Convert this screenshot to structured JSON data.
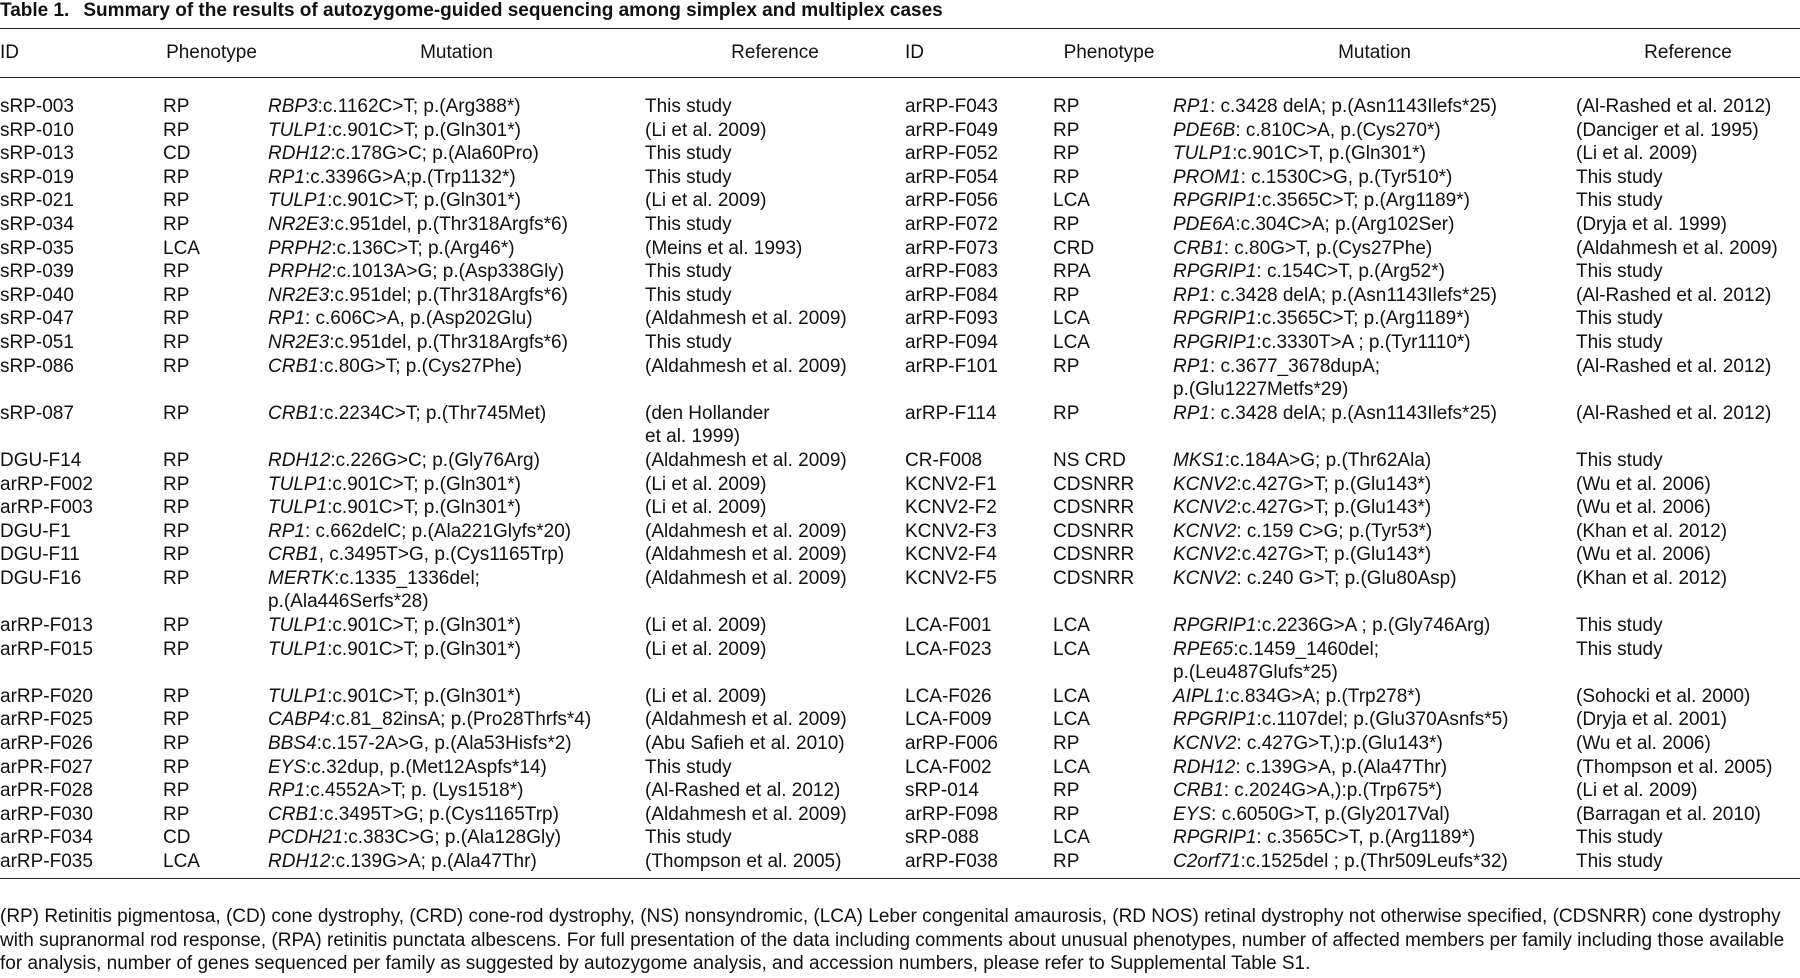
{
  "title": {
    "label": "Table 1.",
    "text": "Summary of the results of autozygome-guided sequencing among simplex and multiplex cases"
  },
  "table": {
    "headers": [
      "ID",
      "Phenotype",
      "Mutation",
      "Reference",
      "ID",
      "Phenotype",
      "Mutation",
      "Reference"
    ],
    "rows": [
      [
        {
          "id": "sRP-003",
          "phenotype": "RP",
          "gene": "RBP3",
          "mutation": ":c.1162C>T; p.(Arg388*)",
          "reference": "This study"
        },
        {
          "id": "arRP-F043",
          "phenotype": "RP",
          "gene": "RP1",
          "mutation": ": c.3428 delA; p.(Asn1143Ilefs*25)",
          "reference": "(Al-Rashed et al. 2012)"
        }
      ],
      [
        {
          "id": "sRP-010",
          "phenotype": "RP",
          "gene": "TULP1",
          "mutation": ":c.901C>T; p.(Gln301*)",
          "reference": "(Li et al. 2009)"
        },
        {
          "id": "arRP-F049",
          "phenotype": "RP",
          "gene": "PDE6B",
          "mutation": ": c.810C>A, p.(Cys270*)",
          "reference": "(Danciger et al. 1995)"
        }
      ],
      [
        {
          "id": "sRP-013",
          "phenotype": "CD",
          "gene": "RDH12",
          "mutation": ":c.178G>C; p.(Ala60Pro)",
          "reference": "This study"
        },
        {
          "id": "arRP-F052",
          "phenotype": "RP",
          "gene": "TULP1",
          "mutation": ":c.901C>T, p.(Gln301*)",
          "reference": "(Li et al. 2009)"
        }
      ],
      [
        {
          "id": "sRP-019",
          "phenotype": "RP",
          "gene": "RP1",
          "mutation": ":c.3396G>A;p.(Trp1132*)",
          "reference": "This study"
        },
        {
          "id": "arRP-F054",
          "phenotype": "RP",
          "gene": "PROM1",
          "mutation": ": c.1530C>G, p.(Tyr510*)",
          "reference": "This study"
        }
      ],
      [
        {
          "id": "sRP-021",
          "phenotype": "RP",
          "gene": "TULP1",
          "mutation": ":c.901C>T; p.(Gln301*)",
          "reference": "(Li et al. 2009)"
        },
        {
          "id": "arRP-F056",
          "phenotype": "LCA",
          "gene": "RPGRIP1",
          "mutation": ":c.3565C>T; p.(Arg1189*)",
          "reference": "This study"
        }
      ],
      [
        {
          "id": "sRP-034",
          "phenotype": "RP",
          "gene": "NR2E3",
          "mutation": ":c.951del, p.(Thr318Argfs*6)",
          "reference": "This study"
        },
        {
          "id": "arRP-F072",
          "phenotype": "RP",
          "gene": "PDE6A",
          "mutation": ":c.304C>A; p.(Arg102Ser)",
          "reference": "(Dryja et al. 1999)"
        }
      ],
      [
        {
          "id": "sRP-035",
          "phenotype": "LCA",
          "gene": "PRPH2",
          "mutation": ":c.136C>T; p.(Arg46*)",
          "reference": "(Meins et al. 1993)"
        },
        {
          "id": "arRP-F073",
          "phenotype": "CRD",
          "gene": "CRB1",
          "mutation": ": c.80G>T, p.(Cys27Phe)",
          "reference": "(Aldahmesh et al. 2009)"
        }
      ],
      [
        {
          "id": "sRP-039",
          "phenotype": "RP",
          "gene": "PRPH2",
          "mutation": ":c.1013A>G; p.(Asp338Gly)",
          "reference": "This study"
        },
        {
          "id": "arRP-F083",
          "phenotype": "RPA",
          "gene": "RPGRIP1",
          "mutation": ": c.154C>T, p.(Arg52*)",
          "reference": "This study"
        }
      ],
      [
        {
          "id": "sRP-040",
          "phenotype": "RP",
          "gene": "NR2E3",
          "mutation": ":c.951del; p.(Thr318Argfs*6)",
          "reference": "This study"
        },
        {
          "id": "arRP-F084",
          "phenotype": "RP",
          "gene": "RP1",
          "mutation": ": c.3428 delA; p.(Asn1143Ilefs*25)",
          "reference": "(Al-Rashed et al. 2012)"
        }
      ],
      [
        {
          "id": "sRP-047",
          "phenotype": "RP",
          "gene": "RP1",
          "mutation": ": c.606C>A, p.(Asp202Glu)",
          "reference": "(Aldahmesh et al. 2009)"
        },
        {
          "id": "arRP-F093",
          "phenotype": "LCA",
          "gene": "RPGRIP1",
          "mutation": ":c.3565C>T; p.(Arg1189*)",
          "reference": "This study"
        }
      ],
      [
        {
          "id": "sRP-051",
          "phenotype": "RP",
          "gene": "NR2E3",
          "mutation": ":c.951del, p.(Thr318Argfs*6)",
          "reference": "This study"
        },
        {
          "id": "arRP-F094",
          "phenotype": "LCA",
          "gene": "RPGRIP1",
          "mutation": ":c.3330T>A ; p.(Tyr1110*)",
          "reference": "This study"
        }
      ],
      [
        {
          "id": "sRP-086",
          "phenotype": "RP",
          "gene": "CRB1",
          "mutation": ":c.80G>T; p.(Cys27Phe)",
          "reference": "(Aldahmesh et al. 2009)"
        },
        {
          "id": "arRP-F101",
          "phenotype": "RP",
          "gene": "RP1",
          "mutation": ": c.3677_3678dupA;\n p.(Glu1227Metfs*29)",
          "reference": "(Al-Rashed et al. 2012)"
        }
      ],
      [
        {
          "id": "sRP-087",
          "phenotype": "RP",
          "gene": "CRB1",
          "mutation": ":c.2234C>T; p.(Thr745Met)",
          "reference": "(den Hollander\n et al. 1999)"
        },
        {
          "id": "arRP-F114",
          "phenotype": "RP",
          "gene": "RP1",
          "mutation": ": c.3428 delA; p.(Asn1143Ilefs*25)",
          "reference": "(Al-Rashed et al. 2012)"
        }
      ],
      [
        {
          "id": "DGU-F14",
          "phenotype": "RP",
          "gene": "RDH12",
          "mutation": ":c.226G>C; p.(Gly76Arg)",
          "reference": "(Aldahmesh et al. 2009)"
        },
        {
          "id": "CR-F008",
          "phenotype": "NS CRD",
          "gene": "MKS1",
          "mutation": ":c.184A>G; p.(Thr62Ala)",
          "reference": "This study"
        }
      ],
      [
        {
          "id": "arRP-F002",
          "phenotype": "RP",
          "gene": "TULP1",
          "mutation": ":c.901C>T; p.(Gln301*)",
          "reference": "(Li et al. 2009)"
        },
        {
          "id": "KCNV2-F1",
          "phenotype": "CDSNRR",
          "gene": "KCNV2",
          "mutation": ":c.427G>T; p.(Glu143*)",
          "reference": "(Wu et al. 2006)"
        }
      ],
      [
        {
          "id": "arRP-F003",
          "phenotype": "RP",
          "gene": "TULP1",
          "mutation": ":c.901C>T; p.(Gln301*)",
          "reference": "(Li et al. 2009)"
        },
        {
          "id": "KCNV2-F2",
          "phenotype": "CDSNRR",
          "gene": "KCNV2",
          "mutation": ":c.427G>T; p.(Glu143*)",
          "reference": "(Wu et al. 2006)"
        }
      ],
      [
        {
          "id": "DGU-F1",
          "phenotype": "RP",
          "gene": "RP1",
          "mutation": ": c.662delC; p.(Ala221Glyfs*20)",
          "reference": "(Aldahmesh et al. 2009)"
        },
        {
          "id": "KCNV2-F3",
          "phenotype": "CDSNRR",
          "gene": "KCNV2",
          "mutation": ": c.159 C>G; p.(Tyr53*)",
          "reference": "(Khan et al. 2012)"
        }
      ],
      [
        {
          "id": "DGU-F11",
          "phenotype": "RP",
          "gene": "CRB1",
          "mutation": ", c.3495T>G, p.(Cys1165Trp)",
          "reference": "(Aldahmesh et al. 2009)"
        },
        {
          "id": "KCNV2-F4",
          "phenotype": "CDSNRR",
          "gene": "KCNV2",
          "mutation": ":c.427G>T; p.(Glu143*)",
          "reference": "(Wu et al. 2006)"
        }
      ],
      [
        {
          "id": "DGU-F16",
          "phenotype": "RP",
          "gene": "MERTK",
          "mutation": ":c.1335_1336del;\n p.(Ala446Serfs*28)",
          "reference": "(Aldahmesh et al. 2009)"
        },
        {
          "id": "KCNV2-F5",
          "phenotype": "CDSNRR",
          "gene": "KCNV2",
          "mutation": ": c.240 G>T; p.(Glu80Asp)",
          "reference": "(Khan et al. 2012)"
        }
      ],
      [
        {
          "id": "arRP-F013",
          "phenotype": "RP",
          "gene": "TULP1",
          "mutation": ":c.901C>T; p.(Gln301*)",
          "reference": "(Li et al. 2009)"
        },
        {
          "id": "LCA-F001",
          "phenotype": "LCA",
          "gene": "RPGRIP1",
          "mutation": ":c.2236G>A ; p.(Gly746Arg)",
          "reference": "This study"
        }
      ],
      [
        {
          "id": "arRP-F015",
          "phenotype": "RP",
          "gene": "TULP1",
          "mutation": ":c.901C>T; p.(Gln301*)",
          "reference": "(Li et al. 2009)"
        },
        {
          "id": "LCA-F023",
          "phenotype": "LCA",
          "gene": "RPE65",
          "mutation": ":c.1459_1460del;\n p.(Leu487Glufs*25)",
          "reference": "This study"
        }
      ],
      [
        {
          "id": "arRP-F020",
          "phenotype": "RP",
          "gene": "TULP1",
          "mutation": ":c.901C>T; p.(Gln301*)",
          "reference": "(Li et al. 2009)"
        },
        {
          "id": "LCA-F026",
          "phenotype": "LCA",
          "gene": "AIPL1",
          "mutation": ":c.834G>A; p.(Trp278*)",
          "reference": "(Sohocki et al. 2000)"
        }
      ],
      [
        {
          "id": "arRP-F025",
          "phenotype": "RP",
          "gene": "CABP4",
          "mutation": ":c.81_82insA; p.(Pro28Thrfs*4)",
          "reference": "(Aldahmesh et al. 2009)"
        },
        {
          "id": "LCA-F009",
          "phenotype": "LCA",
          "gene": "RPGRIP1",
          "mutation": ":c.1107del; p.(Glu370Asnfs*5)",
          "reference": "(Dryja et al. 2001)"
        }
      ],
      [
        {
          "id": "arRP-F026",
          "phenotype": "RP",
          "gene": "BBS4",
          "mutation": ":c.157-2A>G, p.(Ala53Hisfs*2)",
          "reference": "(Abu Safieh et al. 2010)"
        },
        {
          "id": "arRP-F006",
          "phenotype": "RP",
          "gene": "KCNV2",
          "mutation": ": c.427G>T,):p.(Glu143*)",
          "reference": "(Wu et al. 2006)"
        }
      ],
      [
        {
          "id": "arPR-F027",
          "phenotype": "RP",
          "gene": "EYS",
          "mutation": ":c.32dup, p.(Met12Aspfs*14)",
          "reference": "This study"
        },
        {
          "id": "LCA-F002",
          "phenotype": "LCA",
          "gene": "RDH12",
          "mutation": ": c.139G>A, p.(Ala47Thr)",
          "reference": "(Thompson et al. 2005)"
        }
      ],
      [
        {
          "id": "arPR-F028",
          "phenotype": "RP",
          "gene": "RP1",
          "mutation": ":c.4552A>T; p. (Lys1518*)",
          "reference": "(Al-Rashed et al. 2012)"
        },
        {
          "id": "sRP-014",
          "phenotype": "RP",
          "gene": "CRB1",
          "mutation": ": c.2024G>A,):p.(Trp675*)",
          "reference": "(Li et al. 2009)"
        }
      ],
      [
        {
          "id": "arRP-F030",
          "phenotype": "RP",
          "gene": "CRB1",
          "mutation": ":c.3495T>G; p.(Cys1165Trp)",
          "reference": "(Aldahmesh et al. 2009)"
        },
        {
          "id": "arRP-F098",
          "phenotype": "RP",
          "gene": "EYS",
          "mutation": ": c.6050G>T, p.(Gly2017Val)",
          "reference": "(Barragan et al. 2010)"
        }
      ],
      [
        {
          "id": "arRP-F034",
          "phenotype": "CD",
          "gene": "PCDH21",
          "mutation": ":c.383C>G; p.(Ala128Gly)",
          "reference": "This study"
        },
        {
          "id": "sRP-088",
          "phenotype": "LCA",
          "gene": "RPGRIP1",
          "mutation": ": c.3565C>T, p.(Arg1189*)",
          "reference": "This study"
        }
      ],
      [
        {
          "id": "arRP-F035",
          "phenotype": "LCA",
          "gene": "RDH12",
          "mutation": ":c.139G>A; p.(Ala47Thr)",
          "reference": "(Thompson et al. 2005)"
        },
        {
          "id": "arRP-F038",
          "phenotype": "RP",
          "gene": "C2orf71",
          "mutation": ":c.1525del ; p.(Thr509Leufs*32)",
          "reference": "This study"
        }
      ]
    ]
  },
  "footnote": "(RP) Retinitis pigmentosa, (CD) cone dystrophy, (CRD) cone-rod dystrophy, (NS) nonsyndromic, (LCA) Leber congenital amaurosis, (RD NOS) retinal dystrophy not otherwise specified, (CDSNRR) cone dystrophy with supranormal rod response, (RPA) retinitis punctata albescens. For full presentation of the data including comments about unusual phenotypes, number of affected members per family including those available for analysis, number of genes sequenced per family as suggested by autozygome analysis, and accession numbers, please refer to Supplemental Table S1."
}
